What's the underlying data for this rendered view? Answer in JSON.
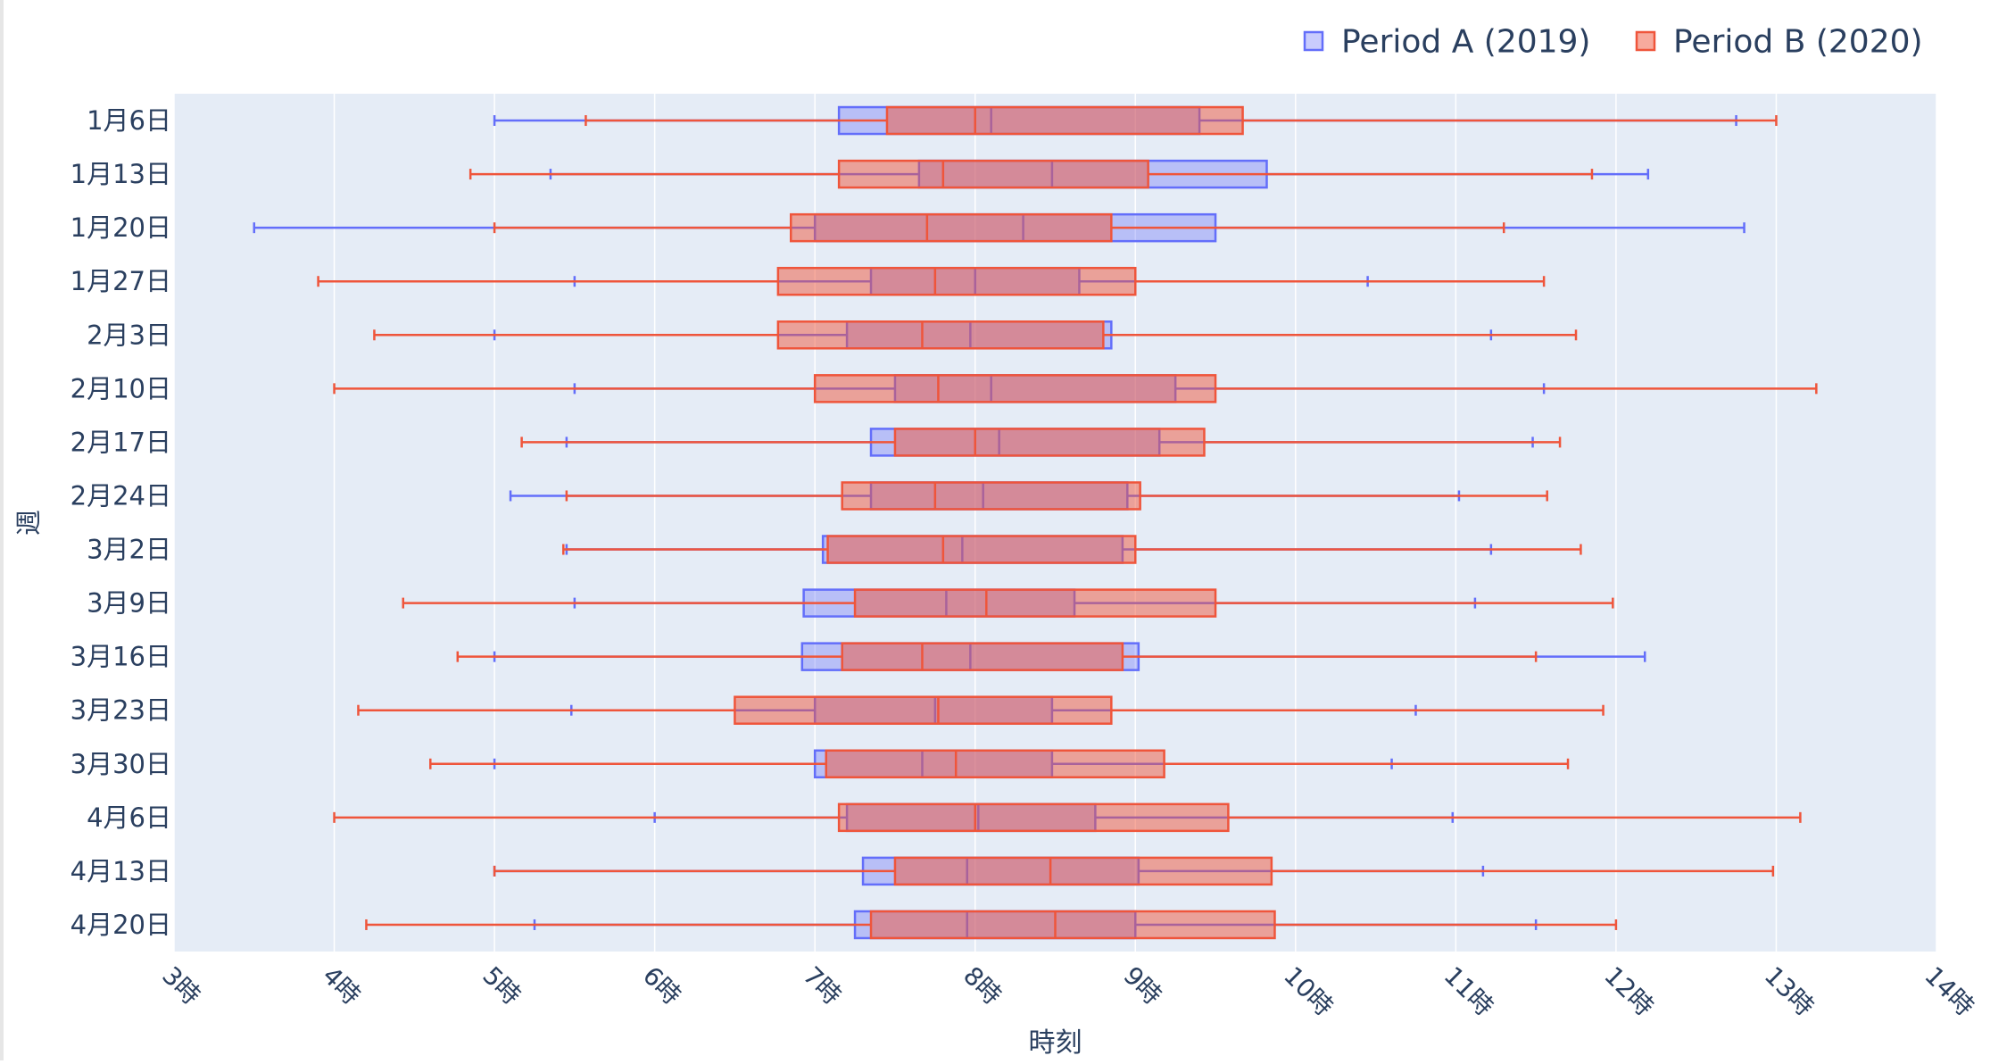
{
  "chart_data": {
    "type": "box",
    "orientation": "horizontal",
    "xlabel": "時刻",
    "ylabel": "週",
    "x_range": [
      3,
      14
    ],
    "x_ticks": [
      3,
      4,
      5,
      6,
      7,
      8,
      9,
      10,
      11,
      12,
      13,
      14
    ],
    "x_tick_labels": [
      "3時",
      "4時",
      "5時",
      "6時",
      "7時",
      "8時",
      "9時",
      "10時",
      "11時",
      "12時",
      "13時",
      "14時"
    ],
    "grid": true,
    "legend_position": "top-right",
    "categories": [
      "1月6日",
      "1月13日",
      "1月20日",
      "1月27日",
      "2月3日",
      "2月10日",
      "2月17日",
      "2月24日",
      "3月2日",
      "3月9日",
      "3月16日",
      "3月23日",
      "3月30日",
      "4月6日",
      "4月13日",
      "4月20日"
    ],
    "series": [
      {
        "name": "Period A (2019)",
        "color": "#636efa",
        "fill": "rgba(99,110,250,0.35)",
        "stats": [
          {
            "min": 5.0,
            "q1": 7.15,
            "median": 8.1,
            "q3": 9.4,
            "max": 12.75
          },
          {
            "min": 5.35,
            "q1": 7.65,
            "median": 8.48,
            "q3": 9.82,
            "max": 12.2
          },
          {
            "min": 3.5,
            "q1": 7.0,
            "median": 8.3,
            "q3": 9.5,
            "max": 12.8
          },
          {
            "min": 5.5,
            "q1": 7.35,
            "median": 8.0,
            "q3": 8.65,
            "max": 10.45
          },
          {
            "min": 5.0,
            "q1": 7.2,
            "median": 7.97,
            "q3": 8.85,
            "max": 11.22
          },
          {
            "min": 5.5,
            "q1": 7.5,
            "median": 8.1,
            "q3": 9.25,
            "max": 11.55
          },
          {
            "min": 5.45,
            "q1": 7.35,
            "median": 8.15,
            "q3": 9.15,
            "max": 11.48
          },
          {
            "min": 5.1,
            "q1": 7.35,
            "median": 8.05,
            "q3": 8.95,
            "max": 11.02
          },
          {
            "min": 5.45,
            "q1": 7.05,
            "median": 7.92,
            "q3": 8.92,
            "max": 11.22
          },
          {
            "min": 5.5,
            "q1": 6.93,
            "median": 7.82,
            "q3": 8.62,
            "max": 11.12
          },
          {
            "min": 5.0,
            "q1": 6.92,
            "median": 7.97,
            "q3": 9.02,
            "max": 12.18
          },
          {
            "min": 5.48,
            "q1": 7.0,
            "median": 7.75,
            "q3": 8.48,
            "max": 10.75
          },
          {
            "min": 5.0,
            "q1": 7.0,
            "median": 7.67,
            "q3": 8.48,
            "max": 10.6
          },
          {
            "min": 6.0,
            "q1": 7.2,
            "median": 8.02,
            "q3": 8.75,
            "max": 10.98
          },
          {
            "min": 5.0,
            "q1": 7.3,
            "median": 7.95,
            "q3": 9.02,
            "max": 11.17
          },
          {
            "min": 5.25,
            "q1": 7.25,
            "median": 7.95,
            "q3": 9.0,
            "max": 11.5
          }
        ]
      },
      {
        "name": "Period B (2020)",
        "color": "#ef553b",
        "fill": "rgba(239,85,59,0.5)",
        "stats": [
          {
            "min": 5.57,
            "q1": 7.45,
            "median": 8.0,
            "q3": 9.67,
            "max": 13.0
          },
          {
            "min": 4.85,
            "q1": 7.15,
            "median": 7.8,
            "q3": 9.08,
            "max": 11.85
          },
          {
            "min": 5.0,
            "q1": 6.85,
            "median": 7.7,
            "q3": 8.85,
            "max": 11.3
          },
          {
            "min": 3.9,
            "q1": 6.77,
            "median": 7.75,
            "q3": 9.0,
            "max": 11.55
          },
          {
            "min": 4.25,
            "q1": 6.77,
            "median": 7.67,
            "q3": 8.8,
            "max": 11.75
          },
          {
            "min": 4.0,
            "q1": 7.0,
            "median": 7.77,
            "q3": 9.5,
            "max": 13.25
          },
          {
            "min": 5.17,
            "q1": 7.5,
            "median": 8.0,
            "q3": 9.43,
            "max": 11.65
          },
          {
            "min": 5.45,
            "q1": 7.17,
            "median": 7.75,
            "q3": 9.03,
            "max": 11.57
          },
          {
            "min": 5.43,
            "q1": 7.08,
            "median": 7.8,
            "q3": 9.0,
            "max": 11.78
          },
          {
            "min": 4.43,
            "q1": 7.25,
            "median": 8.07,
            "q3": 9.5,
            "max": 11.98
          },
          {
            "min": 4.77,
            "q1": 7.17,
            "median": 7.67,
            "q3": 8.92,
            "max": 11.5
          },
          {
            "min": 4.15,
            "q1": 6.5,
            "median": 7.77,
            "q3": 8.85,
            "max": 11.92
          },
          {
            "min": 4.6,
            "q1": 7.07,
            "median": 7.88,
            "q3": 9.18,
            "max": 11.7
          },
          {
            "min": 4.0,
            "q1": 7.15,
            "median": 8.0,
            "q3": 9.58,
            "max": 13.15
          },
          {
            "min": 5.0,
            "q1": 7.5,
            "median": 8.47,
            "q3": 9.85,
            "max": 12.98
          },
          {
            "min": 4.2,
            "q1": 7.35,
            "median": 8.5,
            "q3": 9.87,
            "max": 12.0
          }
        ]
      }
    ]
  }
}
